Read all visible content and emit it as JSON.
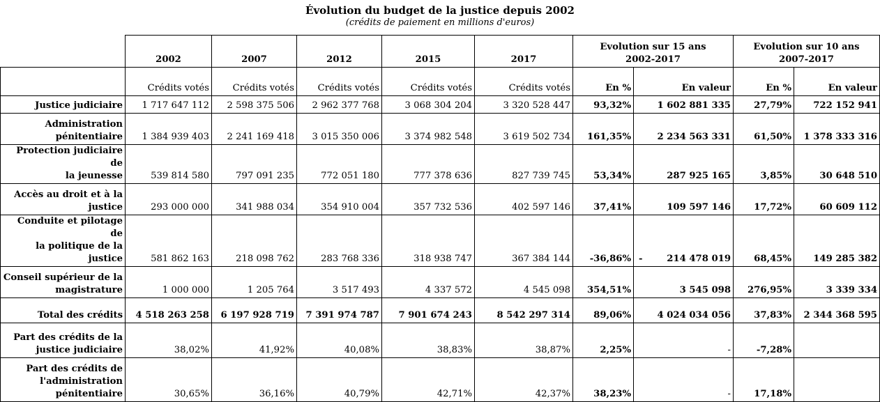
{
  "title": "Évolution du budget de la justice depuis 2002",
  "subtitle": "(crédits de paiement en millions d'euros)",
  "header": {
    "years": [
      "2002",
      "2007",
      "2012",
      "2015",
      "2017"
    ],
    "group15": [
      "Evolution sur 15 ans",
      "2002-2017"
    ],
    "group10": [
      "Evolution sur 10 ans",
      "2007-2017"
    ],
    "credits_votes": "Crédits votés",
    "en_pct": "En %",
    "en_valeur": "En valeur"
  },
  "rows": [
    {
      "label": [
        "Justice judiciaire"
      ],
      "values": [
        "1 717 647 112",
        "2 598 375 506",
        "2 962 377 768",
        "3 068 304 204",
        "3 320 528 447"
      ],
      "p15": "93,32%",
      "v15": "1 602 881 335",
      "p10": "27,79%",
      "v10": "722 152 941"
    },
    {
      "label": [
        "Administration",
        "pénitentiaire"
      ],
      "values": [
        "1 384 939 403",
        "2 241 169 418",
        "3 015 350 006",
        "3 374 982 548",
        "3 619 502 734"
      ],
      "p15": "161,35%",
      "v15": "2 234 563 331",
      "p10": "61,50%",
      "v10": "1 378 333 316"
    },
    {
      "label": [
        "Protection judiciaire de",
        "la jeunesse"
      ],
      "values": [
        "539 814 580",
        "797 091 235",
        "772 051 180",
        "777 378 636",
        "827 739 745"
      ],
      "p15": "53,34%",
      "v15": "287 925 165",
      "p10": "3,85%",
      "v10": "30 648 510"
    },
    {
      "label": [
        "Accès au droit et à la",
        "justice"
      ],
      "values": [
        "293 000 000",
        "341 988 034",
        "354 910 004",
        "357 732 536",
        "402 597 146"
      ],
      "p15": "37,41%",
      "v15": "109 597 146",
      "p10": "17,72%",
      "v10": "60 609 112"
    },
    {
      "label": [
        "Conduite et pilotage de",
        "la politique de la",
        "justice"
      ],
      "values": [
        "581 862 163",
        "218 098 762",
        "283 768 336",
        "318 938 747",
        "367 384 144"
      ],
      "p15": "-36,86%",
      "v15": "214 478 019",
      "v15_dash": "-",
      "p10": "68,45%",
      "v10": "149 285 382"
    },
    {
      "label": [
        "Conseil supérieur de la",
        "magistrature"
      ],
      "values": [
        "1 000 000",
        "1 205 764",
        "3 517 493",
        "4 337 572",
        "4 545 098"
      ],
      "p15": "354,51%",
      "v15": "3 545 098",
      "p10": "276,95%",
      "v10": "3 339 334"
    },
    {
      "label": [
        "Total des crédits"
      ],
      "values": [
        "4 518 263 258",
        "6 197 928 719",
        "7 391 974 787",
        "7 901 674 243",
        "8 542 297 314"
      ],
      "p15": "89,06%",
      "v15": "4 024 034 056",
      "p10": "37,83%",
      "v10": "2 344 368 595"
    },
    {
      "label": [
        "Part des crédits de la",
        "justice judiciaire"
      ],
      "values": [
        "38,02%",
        "41,92%",
        "40,08%",
        "38,83%",
        "38,87%"
      ],
      "p15": "2,25%",
      "v15": "-",
      "p10": "-7,28%",
      "v10": ""
    },
    {
      "label": [
        "Part des crédits de",
        "l'administration",
        "pénitentiaire"
      ],
      "values": [
        "30,65%",
        "36,16%",
        "40,79%",
        "42,71%",
        "42,37%"
      ],
      "p15": "38,23%",
      "v15": "-",
      "p10": "17,18%",
      "v10": ""
    }
  ]
}
